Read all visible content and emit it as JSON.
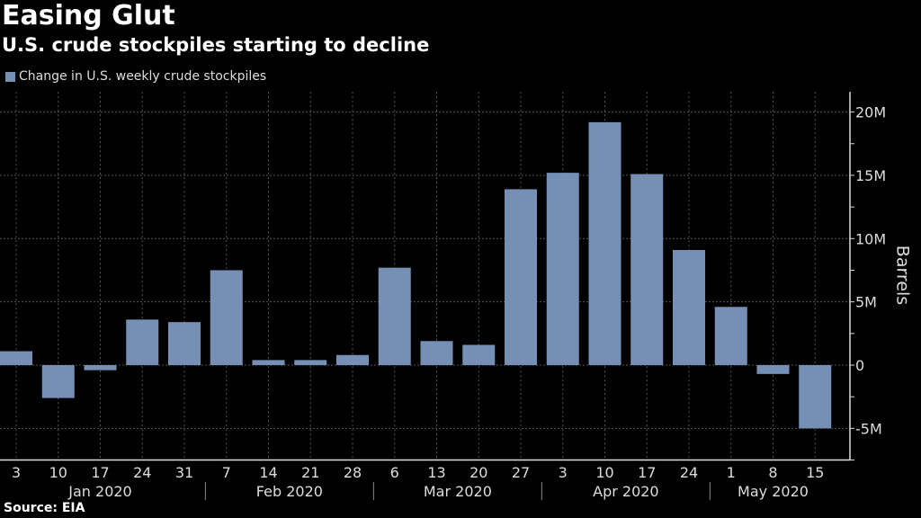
{
  "title": "Easing Glut",
  "subtitle": "U.S. crude stockpiles starting to decline",
  "source": "Source: EIA",
  "colors": {
    "bar": "#7690b5",
    "background": "#000000",
    "grid": "#555555"
  },
  "chart_data": {
    "type": "bar",
    "title": "Easing Glut",
    "subtitle": "U.S. crude stockpiles starting to decline",
    "ylabel": "Barrels",
    "xlabel": "",
    "legend": {
      "position": "top-left",
      "entries": [
        "Change in U.S. weekly crude stockpiles"
      ]
    },
    "series": [
      {
        "name": "Change in U.S. weekly crude stockpiles",
        "values": [
          1.1,
          -2.6,
          -0.4,
          3.6,
          3.4,
          7.5,
          0.4,
          0.4,
          0.8,
          7.7,
          1.9,
          1.6,
          13.9,
          15.2,
          19.2,
          15.1,
          9.1,
          4.6,
          -0.7,
          -5.0
        ]
      }
    ],
    "categories": [
      "3",
      "10",
      "17",
      "24",
      "31",
      "7",
      "14",
      "21",
      "28",
      "6",
      "13",
      "20",
      "27",
      "3",
      "10",
      "17",
      "24",
      "1",
      "8",
      "15"
    ],
    "months": [
      {
        "label": "Jan 2020",
        "from": 0,
        "to": 4
      },
      {
        "label": "Feb 2020",
        "from": 5,
        "to": 8
      },
      {
        "label": "Mar 2020",
        "from": 9,
        "to": 12
      },
      {
        "label": "Apr 2020",
        "from": 13,
        "to": 16
      },
      {
        "label": "May 2020",
        "from": 17,
        "to": 19
      }
    ],
    "units": "millions of barrels",
    "ylim": [
      -7.5,
      21.6
    ],
    "yticks": [
      {
        "value": 20,
        "label": "20M"
      },
      {
        "value": 15,
        "label": "15M"
      },
      {
        "value": 10,
        "label": "10M"
      },
      {
        "value": 5,
        "label": "5M"
      },
      {
        "value": 0,
        "label": "0"
      },
      {
        "value": -5,
        "label": "-5M"
      }
    ],
    "grid": true,
    "yaxis_side": "right"
  }
}
